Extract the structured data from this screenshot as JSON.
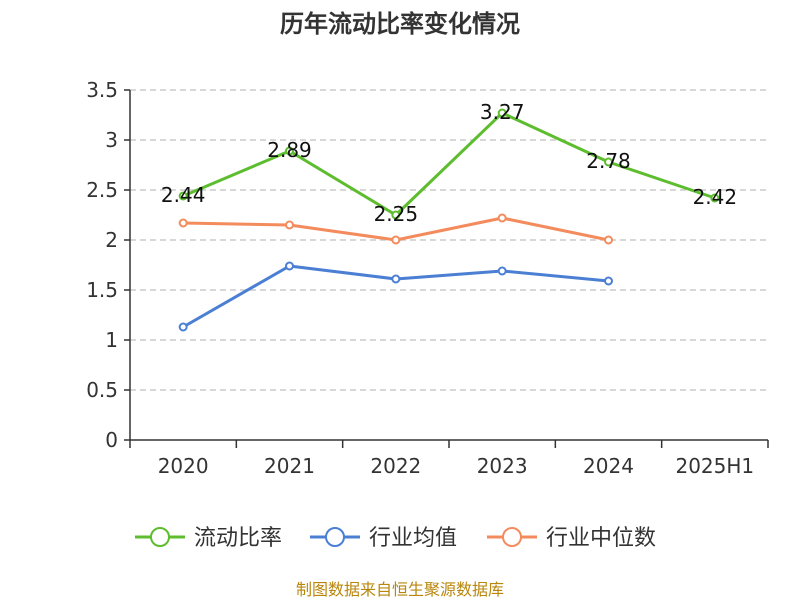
{
  "title": "历年流动比率变化情况",
  "source": "制图数据来自恒生聚源数据库",
  "chart_data": {
    "type": "line",
    "title": "历年流动比率变化情况",
    "categories": [
      "2020",
      "2021",
      "2022",
      "2023",
      "2024",
      "2025H1"
    ],
    "ylim": [
      0,
      3.5
    ],
    "yticks": [
      "0",
      "0.5",
      "1",
      "1.5",
      "2",
      "2.5",
      "3",
      "3.5"
    ],
    "grid": true,
    "legend_position": "bottom",
    "series": [
      {
        "name": "流动比率",
        "color": "#5dbd2e",
        "values": [
          2.44,
          2.89,
          2.25,
          3.27,
          2.78,
          2.42
        ],
        "labels": [
          "2.44",
          "2.89",
          "2.25",
          "3.27",
          "2.78",
          "2.42"
        ],
        "show_labels": true
      },
      {
        "name": "行业均值",
        "color": "#4a7fd4",
        "values": [
          1.13,
          1.74,
          1.61,
          1.69,
          1.59,
          null
        ],
        "show_labels": false
      },
      {
        "name": "行业中位数",
        "color": "#f38b5c",
        "values": [
          2.17,
          2.15,
          2.0,
          2.22,
          2.0,
          null
        ],
        "show_labels": false
      }
    ]
  }
}
